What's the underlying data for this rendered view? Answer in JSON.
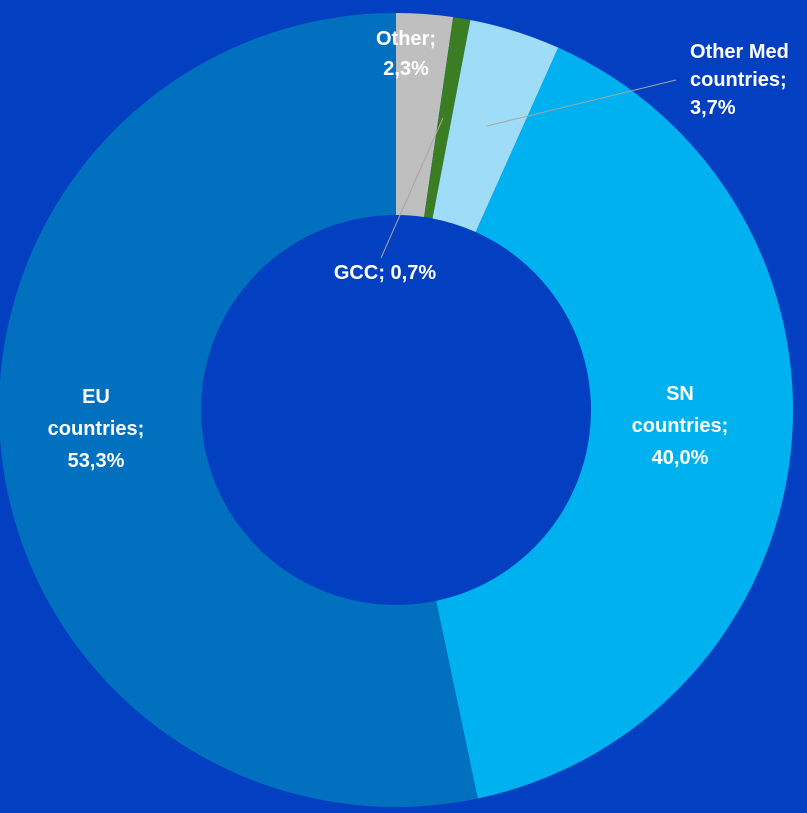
{
  "chart_data": {
    "type": "pie",
    "style": "donut",
    "background_color": "#0340c1",
    "title": "",
    "slices": [
      {
        "name": "Other",
        "value": 2.3,
        "label_lines": [
          "Other;",
          "2,3%"
        ],
        "color": "#bfbfbf"
      },
      {
        "name": "GCC",
        "value": 0.7,
        "label_lines": [
          "GCC; 0,7%"
        ],
        "color": "#3a7d22"
      },
      {
        "name": "Other Med countries",
        "value": 3.7,
        "label_lines": [
          "Other Med",
          "countries;",
          "3,7%"
        ],
        "color": "#9fdcf7"
      },
      {
        "name": "SN countries",
        "value": 40.0,
        "label_lines": [
          "SN",
          "countries;",
          "40,0%"
        ],
        "color": "#00b1f0"
      },
      {
        "name": "EU countries",
        "value": 53.3,
        "label_lines": [
          "EU",
          "countries;",
          "53,3%"
        ],
        "color": "#0170bf"
      }
    ]
  }
}
